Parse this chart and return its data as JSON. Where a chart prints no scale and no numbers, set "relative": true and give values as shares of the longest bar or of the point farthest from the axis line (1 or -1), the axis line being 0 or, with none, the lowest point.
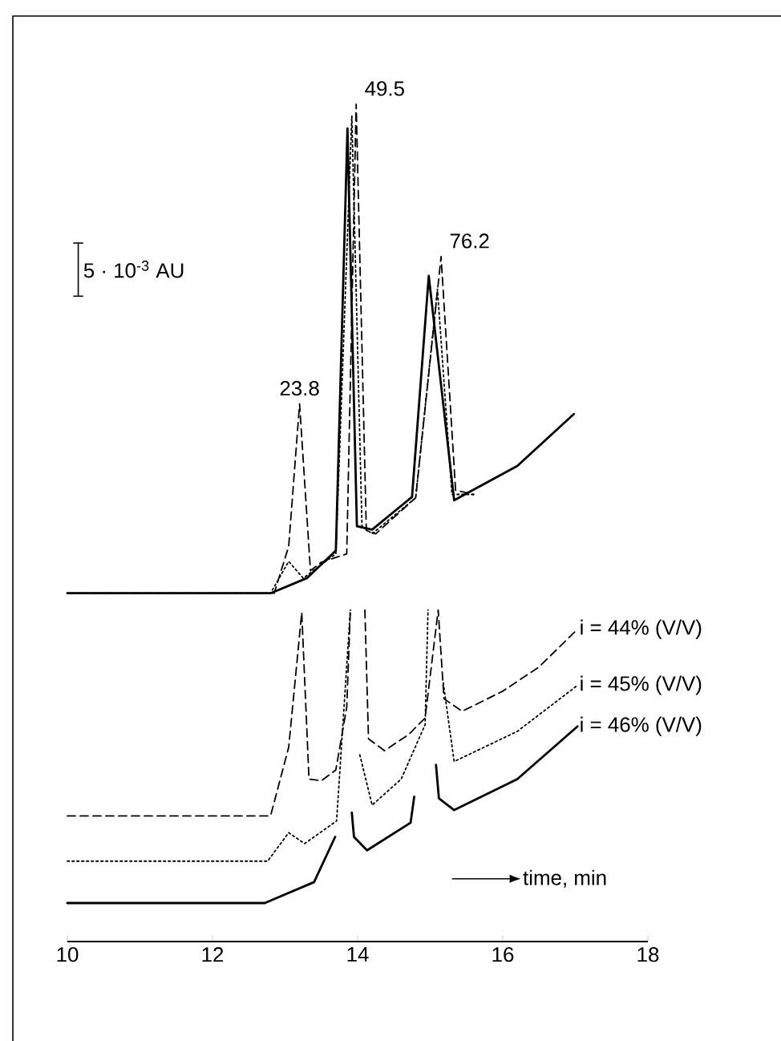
{
  "chart_data": {
    "type": "line",
    "relative": true,
    "xlabel": "time, min",
    "xlim": [
      10,
      18
    ],
    "xticks": [
      10,
      12,
      14,
      16,
      18
    ],
    "grid": false,
    "marker": "none",
    "annotations": [
      {
        "text": "23.8",
        "x": 13.2,
        "y": 0.642
      },
      {
        "text": "49.5",
        "x": 13.98,
        "y": 1.0
      },
      {
        "text": "76.2",
        "x": 15.15,
        "y": 0.818
      },
      "5 · 10$^{-3}$ AU"
    ],
    "series": [
      {
        "color": "#000000",
        "line_style": "dashed",
        "x": [
          10,
          12.85,
          13.05,
          13.2,
          13.35,
          13.5,
          13.85,
          13.98,
          14.12,
          14.25,
          14.8,
          15.15,
          15.35,
          15.6
        ],
        "values": [
          0.416,
          0.416,
          0.472,
          0.642,
          0.443,
          0.453,
          0.463,
          1.0,
          0.491,
          0.487,
          0.53,
          0.818,
          0.539,
          0.534
        ]
      },
      {
        "color": "#000000",
        "line_style": "dotted",
        "x": [
          10,
          12.8,
          13.05,
          13.25,
          13.7,
          13.92,
          14.06,
          14.2,
          14.8,
          15.1,
          15.3,
          15.6
        ],
        "values": [
          0.416,
          0.416,
          0.454,
          0.434,
          0.463,
          0.986,
          0.496,
          0.487,
          0.53,
          0.779,
          0.534,
          0.534
        ]
      },
      {
        "color": "#000000",
        "line_style": "solid",
        "x": [
          10,
          12.8,
          13.3,
          13.7,
          13.86,
          13.99,
          14.2,
          14.75,
          14.98,
          15.33,
          16.2,
          16.98
        ],
        "values": [
          0.416,
          0.416,
          0.434,
          0.467,
          0.971,
          0.496,
          0.492,
          0.531,
          0.795,
          0.527,
          0.568,
          0.63
        ]
      },
      {
        "name": "i = 44% (V/V)",
        "color": "#000000",
        "line_style": "dashed",
        "x": [
          10,
          12.8,
          13.05,
          13.23,
          13.33,
          13.5,
          13.7,
          13.85,
          13.9,
          14.0,
          14.1,
          14.15,
          14.37,
          14.7,
          14.93,
          15.11,
          15.19,
          15.44,
          16.0,
          16.5,
          17.03
        ],
        "values": [
          0.15,
          0.15,
          0.232,
          0.393,
          0.194,
          0.192,
          0.205,
          0.28,
          0.396,
          null,
          0.396,
          0.242,
          0.228,
          0.247,
          0.267,
          0.396,
          0.29,
          0.275,
          0.299,
          0.328,
          0.373
        ]
      },
      {
        "name": "i = 45% (V/V)",
        "color": "#000000",
        "line_style": "dotted",
        "x": [
          10,
          12.76,
          13.05,
          13.27,
          13.71,
          13.9,
          13.97,
          14.03,
          14.2,
          14.6,
          14.93,
          14.97,
          15.08,
          15.18,
          15.33,
          16.2,
          17.03
        ],
        "values": [
          0.096,
          0.096,
          0.13,
          0.117,
          0.144,
          0.396,
          null,
          0.223,
          0.163,
          0.194,
          0.259,
          0.396,
          null,
          0.309,
          0.215,
          0.251,
          0.306
        ]
      },
      {
        "name": "i = 46% (V/V)",
        "color": "#000000",
        "line_style": "solid",
        "x": [
          10,
          12.72,
          13.4,
          13.69,
          13.8,
          13.92,
          13.95,
          14.13,
          14.73,
          14.78,
          14.9,
          15.08,
          15.12,
          15.33,
          16.2,
          17.03
        ],
        "values": [
          0.046,
          0.046,
          0.071,
          0.125,
          null,
          0.154,
          0.125,
          0.109,
          0.142,
          0.173,
          null,
          0.211,
          0.171,
          0.157,
          0.194,
          0.257
        ]
      }
    ]
  }
}
